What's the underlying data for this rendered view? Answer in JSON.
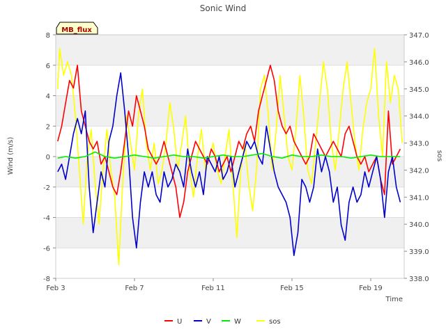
{
  "chart_data": {
    "type": "line",
    "title": "Sonic Wind",
    "badge": "MB_flux",
    "xlabel": "Time",
    "ylabel": "Wind (m/s)",
    "y2label": "sos",
    "xlim": [
      3,
      20.7
    ],
    "ylim": [
      -8,
      8
    ],
    "y2lim": [
      338.0,
      347.0
    ],
    "x_ticks": [
      {
        "value": 3,
        "label": "Feb 3"
      },
      {
        "value": 7,
        "label": "Feb 7"
      },
      {
        "value": 11,
        "label": "Feb 11"
      },
      {
        "value": 15,
        "label": "Feb 15"
      },
      {
        "value": 19,
        "label": "Feb 19"
      }
    ],
    "y_ticks": [
      -8,
      -6,
      -4,
      -2,
      0,
      2,
      4,
      6,
      8
    ],
    "y2_ticks": [
      "338.0",
      "339.0",
      "340.0",
      "341.0",
      "342.0",
      "343.0",
      "344.0",
      "345.0",
      "346.0",
      "347.0"
    ],
    "y2_tick_values": [
      338,
      339,
      340,
      341,
      342,
      343,
      344,
      345,
      346,
      347
    ],
    "legend_position": "bottom-center",
    "series": [
      {
        "name": "U",
        "color": "#ff0000",
        "axis": "left",
        "x": [
          3.1,
          3.3,
          3.5,
          3.7,
          3.9,
          4.1,
          4.3,
          4.5,
          4.7,
          4.9,
          5.1,
          5.3,
          5.5,
          5.7,
          5.9,
          6.1,
          6.3,
          6.5,
          6.7,
          6.9,
          7.1,
          7.3,
          7.5,
          7.7,
          7.9,
          8.1,
          8.3,
          8.5,
          8.7,
          8.9,
          9.1,
          9.3,
          9.5,
          9.7,
          9.9,
          10.1,
          10.3,
          10.5,
          10.7,
          10.9,
          11.1,
          11.3,
          11.5,
          11.7,
          11.9,
          12.1,
          12.3,
          12.5,
          12.7,
          12.9,
          13.1,
          13.3,
          13.5,
          13.7,
          13.9,
          14.1,
          14.3,
          14.5,
          14.7,
          14.9,
          15.1,
          15.3,
          15.5,
          15.7,
          15.9,
          16.1,
          16.3,
          16.5,
          16.7,
          16.9,
          17.1,
          17.3,
          17.5,
          17.7,
          17.9,
          18.1,
          18.3,
          18.5,
          18.7,
          18.9,
          19.1,
          19.3,
          19.5,
          19.7,
          19.9,
          20.1,
          20.3,
          20.5
        ],
        "y": [
          1.0,
          2.0,
          3.5,
          5.0,
          4.5,
          6.0,
          3.0,
          2.0,
          1.0,
          0.5,
          1.0,
          -0.5,
          0.0,
          -1.0,
          -2.0,
          -2.5,
          -1.0,
          1.0,
          3.0,
          2.0,
          4.0,
          3.0,
          2.0,
          0.5,
          0.0,
          -0.5,
          0.0,
          1.0,
          0.0,
          -1.0,
          -2.0,
          -4.0,
          -3.0,
          -1.0,
          0.0,
          1.0,
          0.5,
          0.0,
          -0.5,
          0.5,
          0.0,
          -1.0,
          -0.5,
          0.0,
          -1.0,
          0.0,
          1.0,
          0.5,
          1.5,
          2.0,
          1.0,
          3.0,
          4.0,
          5.0,
          6.0,
          5.0,
          3.0,
          2.0,
          1.5,
          2.0,
          1.0,
          0.5,
          0.0,
          -0.5,
          0.0,
          1.5,
          1.0,
          0.5,
          0.0,
          0.5,
          1.0,
          0.5,
          0.0,
          1.5,
          2.0,
          1.0,
          0.0,
          -0.5,
          0.0,
          -1.0,
          -0.5,
          0.0,
          -1.5,
          -2.5,
          3.0,
          -0.5,
          0.0,
          0.5
        ]
      },
      {
        "name": "V",
        "color": "#0000cc",
        "axis": "left",
        "x": [
          3.1,
          3.3,
          3.5,
          3.7,
          3.9,
          4.1,
          4.3,
          4.5,
          4.7,
          4.9,
          5.1,
          5.3,
          5.5,
          5.7,
          5.9,
          6.1,
          6.3,
          6.5,
          6.7,
          6.9,
          7.1,
          7.3,
          7.5,
          7.7,
          7.9,
          8.1,
          8.3,
          8.5,
          8.7,
          8.9,
          9.1,
          9.3,
          9.5,
          9.7,
          9.9,
          10.1,
          10.3,
          10.5,
          10.7,
          10.9,
          11.1,
          11.3,
          11.5,
          11.7,
          11.9,
          12.1,
          12.3,
          12.5,
          12.7,
          12.9,
          13.1,
          13.3,
          13.5,
          13.7,
          13.9,
          14.1,
          14.3,
          14.5,
          14.7,
          14.9,
          15.1,
          15.3,
          15.5,
          15.7,
          15.9,
          16.1,
          16.3,
          16.5,
          16.7,
          16.9,
          17.1,
          17.3,
          17.5,
          17.7,
          17.9,
          18.1,
          18.3,
          18.5,
          18.7,
          18.9,
          19.1,
          19.3,
          19.5,
          19.7,
          19.9,
          20.1,
          20.3,
          20.5
        ],
        "y": [
          -1.0,
          -0.5,
          -1.5,
          0.0,
          1.5,
          2.5,
          1.5,
          3.0,
          -2.0,
          -5.0,
          -3.0,
          -1.0,
          -2.0,
          1.0,
          2.0,
          4.0,
          5.5,
          3.0,
          0.0,
          -4.0,
          -6.0,
          -3.0,
          -1.0,
          -2.0,
          -1.0,
          -2.5,
          -3.0,
          -1.0,
          -2.0,
          -1.5,
          -0.5,
          -1.0,
          -2.0,
          0.5,
          -1.0,
          -2.0,
          -1.0,
          -2.5,
          0.0,
          -0.5,
          -1.0,
          0.0,
          -1.5,
          -1.0,
          0.0,
          -2.0,
          -1.0,
          0.0,
          1.0,
          0.5,
          1.0,
          0.0,
          -0.5,
          2.0,
          0.5,
          -1.0,
          -2.0,
          -2.5,
          -3.0,
          -4.0,
          -6.5,
          -5.0,
          -1.5,
          -2.0,
          -3.0,
          -2.0,
          0.5,
          -1.0,
          0.0,
          -1.0,
          -3.0,
          -2.0,
          -4.5,
          -5.5,
          -3.0,
          -2.0,
          -3.0,
          -2.5,
          -1.0,
          -2.0,
          -1.0,
          0.0,
          -1.5,
          -4.0,
          -1.0,
          0.0,
          -2.0,
          -3.0
        ]
      },
      {
        "name": "W",
        "color": "#00ee00",
        "axis": "left",
        "x": [
          3.1,
          3.5,
          4.0,
          4.5,
          5.0,
          5.5,
          6.0,
          6.5,
          7.0,
          7.5,
          8.0,
          8.5,
          9.0,
          9.5,
          10.0,
          10.5,
          11.0,
          11.5,
          12.0,
          12.5,
          13.0,
          13.5,
          14.0,
          14.5,
          15.0,
          15.5,
          16.0,
          16.5,
          17.0,
          17.5,
          18.0,
          18.5,
          19.0,
          19.5,
          20.0,
          20.5
        ],
        "y": [
          -0.1,
          0.0,
          -0.1,
          0.0,
          0.3,
          0.0,
          -0.1,
          0.0,
          0.1,
          0.0,
          -0.1,
          0.0,
          0.1,
          0.0,
          0.0,
          -0.1,
          0.0,
          0.1,
          0.0,
          0.0,
          0.1,
          0.2,
          0.0,
          -0.1,
          0.1,
          0.0,
          0.0,
          0.1,
          0.0,
          0.0,
          -0.1,
          0.0,
          0.1,
          0.0,
          0.0,
          0.0
        ]
      },
      {
        "name": "sos",
        "color": "#ffff00",
        "axis": "right",
        "x": [
          3.1,
          3.2,
          3.4,
          3.6,
          3.8,
          4.0,
          4.2,
          4.4,
          4.6,
          4.8,
          5.0,
          5.2,
          5.4,
          5.6,
          5.8,
          6.0,
          6.2,
          6.4,
          6.6,
          6.8,
          7.0,
          7.2,
          7.4,
          7.6,
          7.8,
          8.0,
          8.2,
          8.4,
          8.6,
          8.8,
          9.0,
          9.2,
          9.4,
          9.6,
          9.8,
          10.0,
          10.2,
          10.4,
          10.6,
          10.8,
          11.0,
          11.2,
          11.4,
          11.6,
          11.8,
          12.0,
          12.2,
          12.4,
          12.6,
          12.8,
          13.0,
          13.2,
          13.4,
          13.6,
          13.8,
          14.0,
          14.2,
          14.4,
          14.6,
          14.8,
          15.0,
          15.2,
          15.4,
          15.6,
          15.8,
          16.0,
          16.2,
          16.4,
          16.6,
          16.8,
          17.0,
          17.2,
          17.4,
          17.6,
          17.8,
          18.0,
          18.2,
          18.4,
          18.6,
          18.8,
          19.0,
          19.2,
          19.4,
          19.6,
          19.8,
          20.0,
          20.2,
          20.4,
          20.6
        ],
        "y": [
          345.0,
          346.5,
          345.5,
          346.0,
          345.5,
          344.0,
          342.0,
          340.0,
          342.5,
          343.5,
          341.5,
          340.0,
          342.0,
          343.5,
          342.0,
          341.0,
          338.5,
          341.5,
          344.0,
          343.0,
          342.0,
          344.0,
          345.0,
          343.0,
          342.0,
          343.0,
          341.5,
          342.0,
          343.0,
          344.5,
          343.5,
          342.0,
          343.0,
          344.0,
          342.0,
          341.0,
          342.5,
          343.5,
          342.0,
          342.5,
          343.0,
          342.0,
          341.5,
          342.5,
          343.5,
          341.5,
          339.5,
          342.0,
          343.0,
          341.5,
          340.5,
          342.0,
          345.0,
          345.5,
          344.0,
          342.0,
          343.5,
          345.5,
          344.0,
          342.5,
          342.0,
          343.5,
          345.5,
          344.0,
          342.0,
          341.5,
          343.0,
          344.5,
          346.0,
          345.0,
          343.0,
          342.0,
          343.5,
          345.0,
          346.0,
          344.5,
          343.0,
          342.0,
          343.5,
          344.5,
          345.0,
          346.5,
          344.0,
          342.5,
          346.0,
          344.5,
          345.5,
          345.0,
          343.0
        ]
      }
    ]
  }
}
